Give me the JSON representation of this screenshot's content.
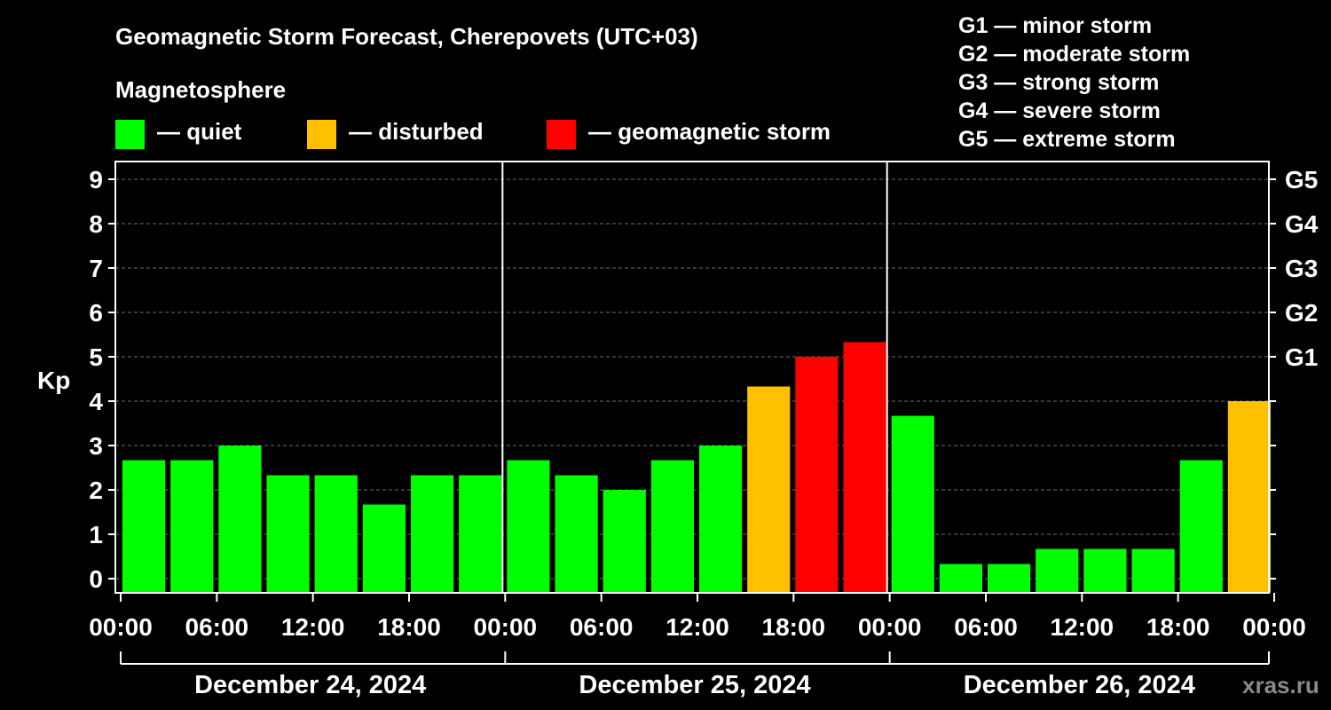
{
  "chart_data": {
    "type": "bar",
    "title": "Geomagnetic Storm Forecast, Cherepovets (UTC+03)",
    "ylabel": "Kp",
    "ylim": [
      0,
      9
    ],
    "y_ticks": [
      "0",
      "1",
      "2",
      "3",
      "4",
      "5",
      "6",
      "7",
      "8",
      "9"
    ],
    "storm_levels": [
      {
        "label": "G1",
        "kp": 5
      },
      {
        "label": "G2",
        "kp": 6
      },
      {
        "label": "G3",
        "kp": 7
      },
      {
        "label": "G4",
        "kp": 8
      },
      {
        "label": "G5",
        "kp": 9
      }
    ],
    "storm_scale": [
      "G1 — minor storm",
      "G2 — moderate storm",
      "G3 — strong storm",
      "G4 — severe storm",
      "G5 — extreme storm"
    ],
    "legend": {
      "heading": "Magnetosphere",
      "items": [
        {
          "label": "— quiet",
          "color": "#00ff00"
        },
        {
          "label": "— disturbed",
          "color": "#ffc000"
        },
        {
          "label": "— geomagnetic storm",
          "color": "#ff0000"
        }
      ]
    },
    "x_ticks": [
      "00:00",
      "06:00",
      "12:00",
      "18:00",
      "00:00",
      "06:00",
      "12:00",
      "18:00",
      "00:00",
      "06:00",
      "12:00",
      "18:00",
      "00:00"
    ],
    "days": [
      "December 24, 2024",
      "December 25, 2024",
      "December 26, 2024"
    ],
    "values": [
      2.67,
      2.67,
      3.0,
      2.33,
      2.33,
      1.67,
      2.33,
      2.33,
      2.67,
      2.33,
      2.0,
      2.67,
      3.0,
      4.33,
      5.0,
      5.33,
      3.67,
      0.33,
      0.33,
      0.67,
      0.67,
      0.67,
      2.67,
      4.0
    ],
    "colors": [
      "#00ff00",
      "#00ff00",
      "#00ff00",
      "#00ff00",
      "#00ff00",
      "#00ff00",
      "#00ff00",
      "#00ff00",
      "#00ff00",
      "#00ff00",
      "#00ff00",
      "#00ff00",
      "#00ff00",
      "#ffc000",
      "#ff0000",
      "#ff0000",
      "#00ff00",
      "#00ff00",
      "#00ff00",
      "#00ff00",
      "#00ff00",
      "#00ff00",
      "#00ff00",
      "#ffc000"
    ],
    "watermark": "xras.ru"
  }
}
